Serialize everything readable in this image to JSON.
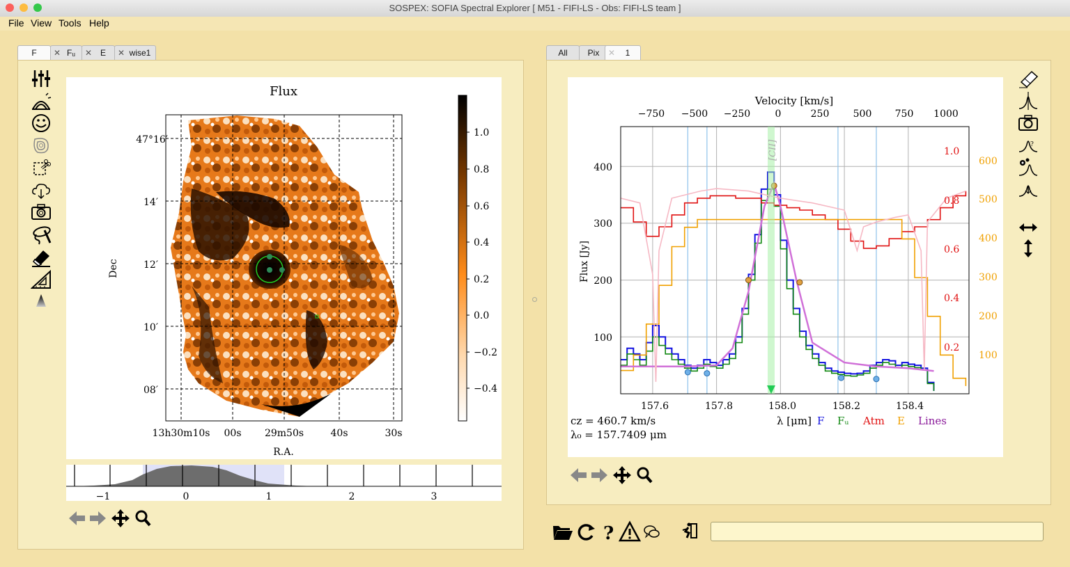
{
  "window": {
    "title": "SOSPEX: SOFIA Spectral Explorer [ M51 - FIFI-LS - Obs: FIFI-LS team ]"
  },
  "menu": [
    "File",
    "View",
    "Tools",
    "Help"
  ],
  "left_tabs": [
    {
      "label": "F",
      "active": true
    },
    {
      "label": "Fᵤ",
      "active": false
    },
    {
      "label": "E",
      "active": false
    },
    {
      "label": "wise1",
      "active": false
    }
  ],
  "right_tabs": [
    {
      "label": "All",
      "active": false
    },
    {
      "label": "Pix",
      "active": false
    },
    {
      "label": "1",
      "active": true
    }
  ],
  "image_plot": {
    "title": "Flux",
    "ylabel": "Dec",
    "xlabel": "R.A.",
    "dec_ticks": [
      "47°16′",
      "14′",
      "12′",
      "10′",
      "08′"
    ],
    "ra_ticks": [
      "13h30m10s",
      "00s",
      "29m50s",
      "40s",
      "30s"
    ],
    "colorbar_ticks": [
      "1.0",
      "0.8",
      "0.6",
      "0.4",
      "0.2",
      "0.0",
      "−0.2",
      "−0.4"
    ]
  },
  "histogram": {
    "ticks": [
      "−1",
      "0",
      "1",
      "2",
      "3"
    ]
  },
  "chart_data": {
    "type": "line",
    "xlabel": "λ [μm]",
    "ylabel": "Flux [Jy]",
    "top_axis_label": "Velocity [km/s]",
    "x_ticks": [
      "157.6",
      "157.8",
      "158.0",
      "158.2",
      "158.4"
    ],
    "y_ticks": [
      "100",
      "200",
      "300",
      "400"
    ],
    "top_ticks": [
      "−750",
      "−500",
      "−250",
      "0",
      "250",
      "500",
      "750",
      "1000"
    ],
    "right_red_ticks": [
      "1.0",
      "0.8",
      "0.6",
      "0.4",
      "0.2"
    ],
    "right_orange_ticks": [
      "600",
      "500",
      "400",
      "300",
      "200",
      "100"
    ],
    "line_label": "[CII]",
    "legend": [
      {
        "name": "F",
        "color": "#1010e0"
      },
      {
        "name": "Fᵤ",
        "color": "#118811"
      },
      {
        "name": "Atm",
        "color": "#e01010"
      },
      {
        "name": "E",
        "color": "#f0a000"
      },
      {
        "name": "Lines",
        "color": "#8a1a9a"
      }
    ],
    "annotation_cz": "cz = 460.7 km/s",
    "annotation_lambda": "λ₀ = 157.7409 μm",
    "xlim": [
      157.5,
      158.59
    ],
    "ylim": [
      0,
      470
    ],
    "series": [
      {
        "name": "F",
        "x": [
          157.5,
          157.52,
          157.54,
          157.56,
          157.58,
          157.6,
          157.62,
          157.64,
          157.66,
          157.68,
          157.7,
          157.72,
          157.74,
          157.76,
          157.78,
          157.8,
          157.82,
          157.84,
          157.86,
          157.88,
          157.9,
          157.92,
          157.94,
          157.96,
          157.98,
          158.0,
          158.02,
          158.04,
          158.06,
          158.08,
          158.1,
          158.12,
          158.14,
          158.16,
          158.18,
          158.2,
          158.22,
          158.24,
          158.26,
          158.28,
          158.3,
          158.32,
          158.34,
          158.36,
          158.38,
          158.4,
          158.42,
          158.44,
          158.46,
          158.48
        ],
        "y": [
          60,
          80,
          70,
          60,
          90,
          120,
          100,
          80,
          70,
          60,
          50,
          45,
          50,
          60,
          55,
          50,
          60,
          70,
          100,
          150,
          210,
          280,
          360,
          390,
          350,
          270,
          200,
          150,
          110,
          85,
          70,
          55,
          45,
          40,
          38,
          36,
          35,
          36,
          40,
          50,
          55,
          60,
          58,
          50,
          55,
          52,
          50,
          45,
          20,
          5
        ]
      },
      {
        "name": "Fᵤ",
        "x": [
          157.5,
          157.52,
          157.54,
          157.56,
          157.58,
          157.6,
          157.62,
          157.64,
          157.66,
          157.68,
          157.7,
          157.72,
          157.74,
          157.76,
          157.78,
          157.8,
          157.82,
          157.84,
          157.86,
          157.88,
          157.9,
          157.92,
          157.94,
          157.96,
          157.98,
          158.0,
          158.02,
          158.04,
          158.06,
          158.08,
          158.1,
          158.12,
          158.14,
          158.16,
          158.18,
          158.2,
          158.22,
          158.24,
          158.26,
          158.28,
          158.3,
          158.32,
          158.34,
          158.36,
          158.38,
          158.4,
          158.42,
          158.44,
          158.46,
          158.48
        ],
        "y": [
          50,
          70,
          60,
          50,
          75,
          100,
          85,
          70,
          60,
          52,
          45,
          40,
          45,
          52,
          48,
          45,
          52,
          62,
          90,
          140,
          200,
          265,
          340,
          360,
          330,
          255,
          185,
          140,
          100,
          78,
          62,
          50,
          40,
          36,
          34,
          32,
          31,
          33,
          36,
          45,
          50,
          55,
          52,
          46,
          50,
          48,
          46,
          42,
          18,
          5
        ]
      },
      {
        "name": "Atm",
        "x": [
          157.5,
          157.54,
          157.58,
          157.62,
          157.66,
          157.7,
          157.74,
          157.78,
          157.82,
          157.86,
          157.9,
          157.94,
          157.98,
          158.02,
          158.06,
          158.1,
          158.14,
          158.18,
          158.22,
          158.26,
          158.3,
          158.34,
          158.38,
          158.42,
          158.46,
          158.5,
          158.54,
          158.58
        ],
        "y": [
          0.78,
          0.72,
          0.66,
          0.7,
          0.75,
          0.8,
          0.82,
          0.83,
          0.83,
          0.82,
          0.82,
          0.8,
          0.79,
          0.78,
          0.77,
          0.75,
          0.73,
          0.69,
          0.64,
          0.61,
          0.62,
          0.65,
          0.68,
          0.7,
          0.73,
          0.78,
          0.83,
          0.85
        ]
      },
      {
        "name": "E",
        "x": [
          157.5,
          157.54,
          157.58,
          157.62,
          157.66,
          157.7,
          157.74,
          157.78,
          157.82,
          157.86,
          157.9,
          157.94,
          157.98,
          158.02,
          158.06,
          158.1,
          158.14,
          158.18,
          158.22,
          158.26,
          158.3,
          158.34,
          158.38,
          158.42,
          158.46,
          158.5,
          158.54,
          158.58
        ],
        "y": [
          60,
          100,
          180,
          280,
          380,
          430,
          450,
          450,
          450,
          450,
          450,
          450,
          450,
          450,
          450,
          450,
          450,
          450,
          450,
          450,
          450,
          450,
          400,
          300,
          200,
          100,
          40,
          20
        ]
      },
      {
        "name": "Lines",
        "x": [
          157.5,
          157.6,
          157.7,
          157.8,
          157.85,
          157.9,
          157.95,
          157.98,
          158.0,
          158.05,
          158.1,
          158.2,
          158.3,
          158.4,
          158.48
        ],
        "y": [
          48,
          48,
          48,
          50,
          80,
          180,
          330,
          370,
          330,
          200,
          90,
          55,
          48,
          45,
          40
        ]
      }
    ]
  },
  "right_icons": [
    "eraser-icon",
    "gaussian-icon",
    "camera-icon",
    "guess-fit-icon",
    "fit-icon",
    "download-fit-icon",
    "horizontal-arrows-icon",
    "vertical-arrows-icon"
  ],
  "left_icons": [
    "sliders-icon",
    "sunrise-icon",
    "smiley-icon",
    "contour-icon",
    "crop-icon",
    "cloud-download-icon",
    "camera-icon",
    "lasso-icon",
    "eraser-icon",
    "ruler-icon",
    "triangle-icon"
  ]
}
